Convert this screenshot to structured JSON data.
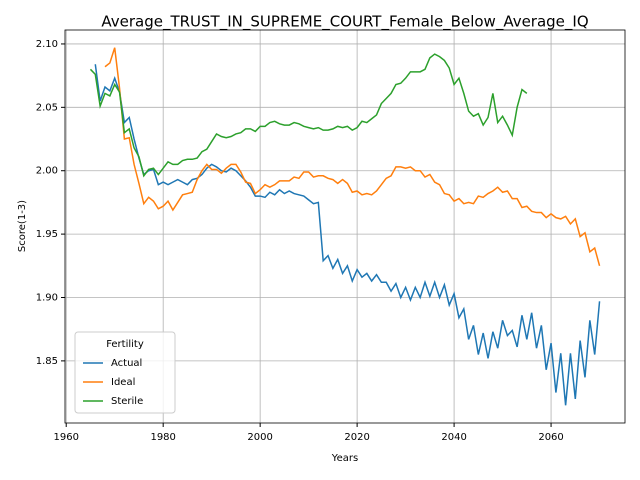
{
  "chart_data": {
    "type": "line",
    "title": "Average_TRUST_IN_SUPREME_COURT_Female_Below_Average_IQ",
    "x_label": "Years",
    "y_label": "Score(1-3)",
    "legend_title": "Fertility",
    "legend_position": "lower left",
    "grid": true,
    "xlim": [
      1959.75,
      2075.25
    ],
    "xticks": [
      1960,
      1980,
      2000,
      2020,
      2040,
      2060
    ],
    "ylim": [
      1.801,
      2.111
    ],
    "yticks": [
      1.85,
      {
        "value": 1.9,
        "label": "1.90"
      },
      1.95,
      {
        "value": 2.0,
        "label": "2.00"
      },
      2.05,
      {
        "value": 2.1,
        "label": "2.10"
      }
    ],
    "x": [
      1965,
      1966,
      1967,
      1968,
      1969,
      1970,
      1971,
      1972,
      1973,
      1974,
      1975,
      1976,
      1977,
      1978,
      1979,
      1980,
      1981,
      1982,
      1983,
      1984,
      1985,
      1986,
      1987,
      1988,
      1989,
      1990,
      1991,
      1992,
      1993,
      1994,
      1995,
      1996,
      1997,
      1998,
      1999,
      2000,
      2001,
      2002,
      2003,
      2004,
      2005,
      2006,
      2007,
      2008,
      2009,
      2010,
      2011,
      2012,
      2013,
      2014,
      2015,
      2016,
      2017,
      2018,
      2019,
      2020,
      2021,
      2022,
      2023,
      2024,
      2025,
      2026,
      2027,
      2028,
      2029,
      2030,
      2031,
      2032,
      2033,
      2034,
      2035,
      2036,
      2037,
      2038,
      2039,
      2040,
      2041,
      2042,
      2043,
      2044,
      2045,
      2046,
      2047,
      2048,
      2049,
      2050,
      2051,
      2052,
      2053,
      2054,
      2055,
      2056,
      2057,
      2058,
      2059,
      2060,
      2061,
      2062,
      2063,
      2064,
      2065,
      2066,
      2067,
      2068,
      2069,
      2070
    ],
    "series": [
      {
        "name": "Actual",
        "color": "#1f77b4",
        "values": [
          null,
          2.084,
          2.055,
          2.066,
          2.063,
          2.073,
          2.062,
          2.038,
          2.042,
          2.025,
          2.01,
          1.997,
          2.0,
          2.001,
          1.989,
          1.991,
          1.989,
          1.991,
          1.993,
          1.991,
          1.989,
          1.993,
          1.994,
          1.997,
          2.002,
          2.005,
          2.003,
          2.0,
          1.999,
          2.002,
          2.0,
          1.996,
          1.992,
          1.987,
          1.98,
          1.98,
          1.979,
          1.983,
          1.981,
          1.985,
          1.982,
          1.984,
          1.982,
          1.981,
          1.98,
          1.977,
          1.974,
          1.975,
          1.929,
          1.933,
          1.923,
          1.93,
          1.919,
          1.925,
          1.913,
          1.922,
          1.916,
          1.919,
          1.913,
          1.918,
          1.912,
          1.912,
          1.905,
          1.911,
          1.9,
          1.908,
          1.898,
          1.908,
          1.9,
          1.912,
          1.901,
          1.912,
          1.9,
          1.91,
          1.894,
          1.903,
          1.884,
          1.891,
          1.867,
          1.878,
          1.855,
          1.872,
          1.852,
          1.873,
          1.86,
          1.882,
          1.87,
          1.874,
          1.861,
          1.886,
          1.867,
          1.888,
          1.86,
          1.878,
          1.843,
          1.864,
          1.825,
          1.856,
          1.815,
          1.856,
          1.82,
          1.866,
          1.837,
          1.882,
          1.855,
          1.897
        ]
      },
      {
        "name": "Ideal",
        "color": "#ff7f0e",
        "values": [
          null,
          null,
          null,
          2.082,
          2.085,
          2.097,
          2.065,
          2.025,
          2.026,
          2.005,
          1.99,
          1.974,
          1.979,
          1.976,
          1.97,
          1.972,
          1.976,
          1.969,
          1.975,
          1.981,
          1.982,
          1.983,
          1.993,
          2.0,
          2.005,
          2.001,
          2.001,
          1.998,
          2.002,
          2.005,
          2.005,
          1.999,
          1.991,
          1.99,
          1.982,
          1.985,
          1.989,
          1.987,
          1.989,
          1.992,
          1.992,
          1.992,
          1.995,
          1.994,
          1.999,
          1.999,
          1.995,
          1.996,
          1.996,
          1.994,
          1.993,
          1.99,
          1.993,
          1.99,
          1.983,
          1.984,
          1.981,
          1.982,
          1.981,
          1.984,
          1.989,
          1.994,
          1.996,
          2.003,
          2.003,
          2.002,
          2.003,
          2.0,
          2.0,
          1.995,
          1.997,
          1.991,
          1.989,
          1.982,
          1.981,
          1.976,
          1.978,
          1.974,
          1.975,
          1.974,
          1.98,
          1.979,
          1.982,
          1.984,
          1.987,
          1.983,
          1.984,
          1.978,
          1.978,
          1.971,
          1.972,
          1.968,
          1.967,
          1.967,
          1.963,
          1.966,
          1.963,
          1.962,
          1.964,
          1.958,
          1.962,
          1.948,
          1.951,
          1.936,
          1.939,
          1.925
        ]
      },
      {
        "name": "Sterile",
        "color": "#2ca02c",
        "values": [
          2.08,
          2.076,
          2.051,
          2.061,
          2.059,
          2.068,
          2.062,
          2.03,
          2.033,
          2.018,
          2.011,
          1.996,
          2.001,
          2.002,
          1.997,
          2.002,
          2.007,
          2.005,
          2.005,
          2.008,
          2.009,
          2.009,
          2.01,
          2.015,
          2.017,
          2.023,
          2.029,
          2.027,
          2.026,
          2.027,
          2.029,
          2.03,
          2.033,
          2.033,
          2.031,
          2.035,
          2.035,
          2.038,
          2.039,
          2.037,
          2.036,
          2.036,
          2.038,
          2.037,
          2.035,
          2.034,
          2.033,
          2.034,
          2.032,
          2.032,
          2.033,
          2.035,
          2.034,
          2.035,
          2.032,
          2.034,
          2.039,
          2.038,
          2.041,
          2.044,
          2.053,
          2.057,
          2.061,
          2.068,
          2.069,
          2.073,
          2.078,
          2.078,
          2.078,
          2.08,
          2.089,
          2.092,
          2.09,
          2.087,
          2.081,
          2.068,
          2.073,
          2.061,
          2.047,
          2.043,
          2.045,
          2.036,
          2.042,
          2.061,
          2.038,
          2.043,
          2.036,
          2.028,
          2.05,
          2.064,
          2.061,
          null,
          null,
          null,
          null,
          null,
          null,
          null,
          null,
          null,
          null,
          null,
          null,
          null,
          null,
          null
        ]
      }
    ]
  }
}
